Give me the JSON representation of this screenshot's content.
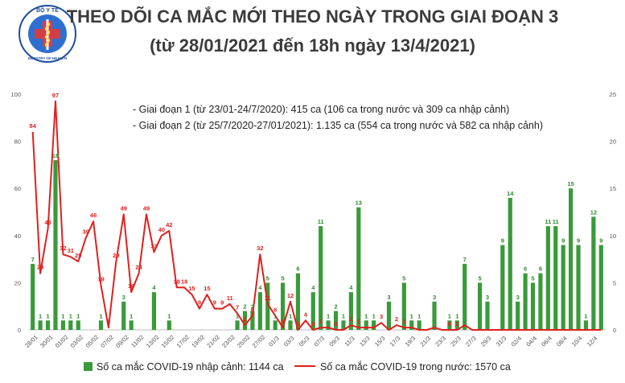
{
  "title": "THEO DÕI CA MẮC MỚI THEO NGÀY TRONG GIAI ĐOẠN 3",
  "subtitle": "(từ 28/01/2021 đến 18h ngày 13/4/2021)",
  "logo": {
    "text_top": "BỘ Y TẾ",
    "text_bottom": "MINISTRY OF HEALTH",
    "color": "#1f4e9c"
  },
  "annotations": [
    "- Giai đoạn 1 (từ 23/01-24/7/2020): 415 ca (106 ca trong nước và 309 ca nhập cảnh)",
    "- Giai đoạn 2 (từ 25/7/2020-27/01/2021): 1.135 ca (554 ca trong nước và 582 ca nhập cảnh)"
  ],
  "chart_data": {
    "type": "bar+line",
    "categories": [
      "28/01",
      "29/01",
      "30/01",
      "31/01",
      "01/02",
      "02/02",
      "03/02",
      "04/02",
      "05/02",
      "06/02",
      "07/02",
      "08/02",
      "09/02",
      "10/02",
      "11/02",
      "12/02",
      "13/02",
      "14/02",
      "15/02",
      "16/02",
      "17/02",
      "18/02",
      "19/02",
      "20/02",
      "21/02",
      "22/02",
      "23/02",
      "24/02",
      "25/02",
      "26/02",
      "27/02",
      "28/02",
      "01/3",
      "02/3",
      "03/3",
      "04/3",
      "05/3",
      "06/3",
      "07/3",
      "08/3",
      "09/3",
      "10/3",
      "11/3",
      "12/3",
      "13/3",
      "14/3",
      "15/3",
      "16/3",
      "17/3",
      "18/3",
      "19/3",
      "20/3",
      "21/3",
      "22/3",
      "23/3",
      "24/3",
      "25/3",
      "26/3",
      "27/3",
      "28/3",
      "29/3",
      "30/3",
      "31/3",
      "01/4",
      "02/4",
      "03/4",
      "04/4",
      "05/4",
      "06/4",
      "07/4",
      "08/4",
      "09/4",
      "10/4",
      "11/4",
      "12/4",
      "13/4"
    ],
    "x_tick_labels": [
      "28/01",
      "30/01",
      "01/02",
      "03/02",
      "05/02",
      "07/02",
      "09/02",
      "11/02",
      "13/02",
      "15/02",
      "17/02",
      "19/02",
      "21/02",
      "23/02",
      "25/02",
      "27/02",
      "01/3",
      "03/3",
      "05/3",
      "07/3",
      "09/3",
      "11/3",
      "13/3",
      "15/3",
      "17/3",
      "19/3",
      "21/3",
      "23/3",
      "25/3",
      "27/3",
      "29/3",
      "31/3",
      "02/4",
      "04/4",
      "06/4",
      "08/4",
      "10/4",
      "12/4"
    ],
    "series": [
      {
        "name": "Số ca mắc COVID-19 nhập cảnh: 1144 ca",
        "axis": "right",
        "color": "#3a9a3a",
        "values": [
          7,
          1,
          1,
          18,
          1,
          1,
          1,
          null,
          null,
          1,
          null,
          null,
          3,
          1,
          null,
          null,
          4,
          null,
          1,
          null,
          null,
          null,
          null,
          null,
          null,
          null,
          null,
          1,
          2,
          2,
          4,
          5,
          1,
          5,
          1,
          6,
          null,
          4,
          11,
          1,
          2,
          1,
          4,
          13,
          1,
          1,
          null,
          3,
          null,
          5,
          1,
          1,
          null,
          3,
          null,
          1,
          1,
          7,
          null,
          5,
          3,
          null,
          9,
          14,
          3,
          6,
          5,
          6,
          11,
          11,
          9,
          15,
          9,
          1,
          12,
          9
        ]
      },
      {
        "name": "Số ca mắc COVID-19 trong nước: 1570 ca",
        "axis": "left",
        "color": "#e0201e",
        "values": [
          84,
          24,
          43,
          97,
          32,
          31,
          29,
          39,
          46,
          19,
          1,
          29,
          49,
          16,
          24,
          49,
          33,
          40,
          42,
          18,
          18,
          15,
          9,
          15,
          9,
          9,
          11,
          7,
          2,
          6,
          32,
          11,
          6,
          1,
          12,
          0,
          4,
          0,
          1,
          1,
          0,
          0,
          2,
          1,
          1,
          1,
          3,
          0,
          2,
          1,
          1,
          0,
          0,
          1,
          0,
          0,
          0,
          2,
          0,
          0,
          0,
          0,
          0,
          0,
          0,
          0,
          0,
          0,
          0,
          0,
          0,
          0,
          0,
          0,
          0,
          0
        ]
      }
    ],
    "bar_labels": [
      {
        "i": 0,
        "t": "7"
      },
      {
        "i": 1,
        "t": "1"
      },
      {
        "i": 2,
        "t": "1"
      },
      {
        "i": 3,
        "t": "18"
      },
      {
        "i": 4,
        "t": "1"
      },
      {
        "i": 5,
        "t": "1"
      },
      {
        "i": 6,
        "t": "1"
      },
      {
        "i": 9,
        "t": "1"
      },
      {
        "i": 12,
        "t": "3"
      },
      {
        "i": 13,
        "t": "1"
      },
      {
        "i": 16,
        "t": "4"
      },
      {
        "i": 18,
        "t": "1"
      },
      {
        "i": 27,
        "t": "1"
      },
      {
        "i": 28,
        "t": "2"
      },
      {
        "i": 29,
        "t": "2"
      },
      {
        "i": 30,
        "t": "4"
      },
      {
        "i": 31,
        "t": "5"
      },
      {
        "i": 32,
        "t": "1"
      },
      {
        "i": 33,
        "t": "5"
      },
      {
        "i": 34,
        "t": "1"
      },
      {
        "i": 35,
        "t": "6"
      },
      {
        "i": 37,
        "t": "4"
      },
      {
        "i": 38,
        "t": "11"
      },
      {
        "i": 39,
        "t": "1"
      },
      {
        "i": 40,
        "t": "2"
      },
      {
        "i": 41,
        "t": "1"
      },
      {
        "i": 42,
        "t": "4"
      },
      {
        "i": 43,
        "t": "13"
      },
      {
        "i": 44,
        "t": "1"
      },
      {
        "i": 45,
        "t": "1"
      },
      {
        "i": 47,
        "t": "3"
      },
      {
        "i": 49,
        "t": "5"
      },
      {
        "i": 50,
        "t": "1"
      },
      {
        "i": 51,
        "t": "1"
      },
      {
        "i": 53,
        "t": "3"
      },
      {
        "i": 55,
        "t": "1"
      },
      {
        "i": 56,
        "t": "1"
      },
      {
        "i": 57,
        "t": "7"
      },
      {
        "i": 59,
        "t": "5"
      },
      {
        "i": 60,
        "t": "3"
      },
      {
        "i": 62,
        "t": "9"
      },
      {
        "i": 63,
        "t": "14"
      },
      {
        "i": 64,
        "t": "3"
      },
      {
        "i": 65,
        "t": "6"
      },
      {
        "i": 66,
        "t": "5"
      },
      {
        "i": 67,
        "t": "6"
      },
      {
        "i": 68,
        "t": "11"
      },
      {
        "i": 69,
        "t": "11"
      },
      {
        "i": 70,
        "t": "9"
      },
      {
        "i": 71,
        "t": "15"
      },
      {
        "i": 72,
        "t": "9"
      },
      {
        "i": 73,
        "t": "1"
      },
      {
        "i": 74,
        "t": "12"
      },
      {
        "i": 75,
        "t": "9"
      }
    ],
    "line_labels": [
      {
        "i": 0,
        "t": "84"
      },
      {
        "i": 1,
        "t": "24"
      },
      {
        "i": 2,
        "t": "43"
      },
      {
        "i": 3,
        "t": "97"
      },
      {
        "i": 4,
        "t": "32"
      },
      {
        "i": 5,
        "t": "31"
      },
      {
        "i": 6,
        "t": "29"
      },
      {
        "i": 7,
        "t": "39"
      },
      {
        "i": 8,
        "t": "46"
      },
      {
        "i": 9,
        "t": "19"
      },
      {
        "i": 10,
        "t": "1"
      },
      {
        "i": 11,
        "t": "29"
      },
      {
        "i": 12,
        "t": "49"
      },
      {
        "i": 13,
        "t": "16"
      },
      {
        "i": 14,
        "t": "24"
      },
      {
        "i": 15,
        "t": "49"
      },
      {
        "i": 16,
        "t": "33"
      },
      {
        "i": 17,
        "t": "40"
      },
      {
        "i": 18,
        "t": "42"
      },
      {
        "i": 19,
        "t": "18"
      },
      {
        "i": 20,
        "t": "18"
      },
      {
        "i": 21,
        "t": "15"
      },
      {
        "i": 22,
        "t": "9"
      },
      {
        "i": 23,
        "t": "15"
      },
      {
        "i": 24,
        "t": "9"
      },
      {
        "i": 25,
        "t": "9"
      },
      {
        "i": 26,
        "t": "11"
      },
      {
        "i": 27,
        "t": "7"
      },
      {
        "i": 28,
        "t": "2"
      },
      {
        "i": 29,
        "t": "6"
      },
      {
        "i": 30,
        "t": "32"
      },
      {
        "i": 31,
        "t": "11"
      },
      {
        "i": 32,
        "t": "6"
      },
      {
        "i": 33,
        "t": "1"
      },
      {
        "i": 34,
        "t": "12"
      },
      {
        "i": 35,
        "t": "0"
      },
      {
        "i": 36,
        "t": "4"
      },
      {
        "i": 37,
        "t": "0"
      },
      {
        "i": 38,
        "t": "1"
      },
      {
        "i": 40,
        "t": "0"
      },
      {
        "i": 42,
        "t": "2"
      },
      {
        "i": 43,
        "t": "1"
      },
      {
        "i": 46,
        "t": "3"
      },
      {
        "i": 48,
        "t": "2"
      },
      {
        "i": 49,
        "t": "1"
      },
      {
        "i": 55,
        "t": "0"
      },
      {
        "i": 56,
        "t": "2"
      }
    ],
    "y_left": {
      "min": 0,
      "max": 100,
      "ticks": [
        0,
        20,
        40,
        60,
        80,
        100
      ]
    },
    "y_right": {
      "min": 0,
      "max": 25,
      "ticks": [
        0,
        5,
        10,
        15,
        20,
        25
      ]
    },
    "legend_position": "bottom",
    "grid": false
  },
  "legend": {
    "bar": "Số ca mắc COVID-19 nhập cảnh: 1144 ca",
    "line": "Số ca mắc COVID-19 trong nước: 1570 ca"
  }
}
